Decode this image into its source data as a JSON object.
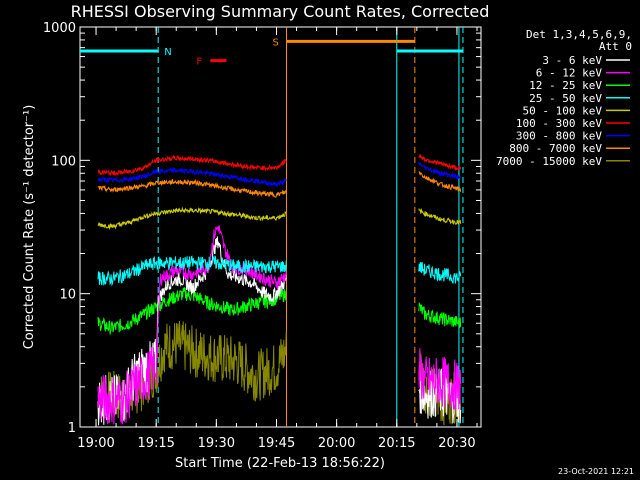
{
  "chart_data": {
    "type": "line",
    "title": "RHESSI Observing Summary Count Rates, Corrected",
    "xlabel": "Start Time (22-Feb-13 18:56:22)",
    "ylabel": "Corrected Count Rate (s⁻¹ detector⁻¹)",
    "yscale": "log",
    "ylim": [
      1,
      1000
    ],
    "x_unit": "minutes of day",
    "xlim": [
      "18:56",
      "20:36"
    ],
    "x_ticks": [
      {
        "label": "19:00",
        "min": 1140
      },
      {
        "label": "19:15",
        "min": 1155
      },
      {
        "label": "19:30",
        "min": 1170
      },
      {
        "label": "19:45",
        "min": 1185
      },
      {
        "label": "20:00",
        "min": 1200
      },
      {
        "label": "20:15",
        "min": 1215
      },
      {
        "label": "20:30",
        "min": 1230
      }
    ],
    "y_ticks": [
      {
        "label": "1",
        "value": 1
      },
      {
        "label": "10",
        "value": 10
      },
      {
        "label": "100",
        "value": 100
      },
      {
        "label": "1000",
        "value": 1000
      }
    ],
    "legend": {
      "placement": "top-right",
      "header": [
        "Det 1,3,4,5,6,9,",
        "Att 0"
      ]
    },
    "series": [
      {
        "name": "3 - 6 keV",
        "color": "#ffffff",
        "segments": [
          [
            [
              1140.5,
              1.6
            ],
            [
              1147,
              1.6
            ],
            [
              1149,
              2.2
            ],
            [
              1151,
              2.6
            ],
            [
              1153,
              2.8
            ],
            [
              1155,
              3
            ],
            [
              1155.5,
              9
            ],
            [
              1158,
              12
            ],
            [
              1161,
              13
            ],
            [
              1164,
              11
            ],
            [
              1166,
              13
            ],
            [
              1168,
              15
            ],
            [
              1169.5,
              22
            ],
            [
              1170.5,
              25
            ],
            [
              1171.5,
              18
            ],
            [
              1173,
              14
            ],
            [
              1176,
              13
            ],
            [
              1179,
              12
            ],
            [
              1182,
              10
            ],
            [
              1184,
              9.5
            ],
            [
              1186,
              11
            ],
            [
              1187.5,
              13
            ]
          ],
          [
            [
              1220.5,
              2
            ],
            [
              1222,
              1.8
            ],
            [
              1226,
              1.8
            ],
            [
              1231,
              1.6
            ]
          ]
        ]
      },
      {
        "name": "6 - 12 keV",
        "color": "#ff00ff",
        "segments": [
          [
            [
              1140.5,
              1.6
            ],
            [
              1147,
              1.6
            ],
            [
              1151,
              2.2
            ],
            [
              1154,
              2.6
            ],
            [
              1155,
              3
            ],
            [
              1156,
              13
            ],
            [
              1160,
              15
            ],
            [
              1164,
              14
            ],
            [
              1166,
              15
            ],
            [
              1168,
              16
            ],
            [
              1169.5,
              28
            ],
            [
              1170.5,
              32
            ],
            [
              1172,
              22
            ],
            [
              1174,
              16
            ],
            [
              1178,
              15
            ],
            [
              1182,
              13
            ],
            [
              1185,
              12
            ],
            [
              1187.5,
              14
            ]
          ],
          [
            [
              1220.5,
              2.6
            ],
            [
              1222,
              2.2
            ],
            [
              1226,
              2.2
            ],
            [
              1231,
              2
            ]
          ]
        ]
      },
      {
        "name": "12 - 25 keV",
        "color": "#00ff00",
        "segments": [
          [
            [
              1140.5,
              6
            ],
            [
              1144,
              5.5
            ],
            [
              1148,
              6
            ],
            [
              1152,
              7
            ],
            [
              1155,
              8
            ],
            [
              1158,
              9
            ],
            [
              1162,
              10
            ],
            [
              1165,
              9.5
            ],
            [
              1168,
              8.5
            ],
            [
              1171,
              8
            ],
            [
              1174,
              7.5
            ],
            [
              1177,
              8
            ],
            [
              1180,
              8.5
            ],
            [
              1184,
              9
            ],
            [
              1187.5,
              10
            ]
          ],
          [
            [
              1220.5,
              8
            ],
            [
              1222,
              7
            ],
            [
              1226,
              6.5
            ],
            [
              1231,
              6
            ]
          ]
        ]
      },
      {
        "name": "25 - 50 keV",
        "color": "#00ffff",
        "segments": [
          [
            [
              1140.5,
              13
            ],
            [
              1144,
              13
            ],
            [
              1148,
              14
            ],
            [
              1152,
              16
            ],
            [
              1155,
              17
            ],
            [
              1160,
              17
            ],
            [
              1165,
              17
            ],
            [
              1170,
              17
            ],
            [
              1175,
              16
            ],
            [
              1180,
              16
            ],
            [
              1185,
              16
            ],
            [
              1187.5,
              16
            ]
          ],
          [
            [
              1220.5,
              16
            ],
            [
              1222,
              15
            ],
            [
              1226,
              14
            ],
            [
              1231,
              13
            ]
          ]
        ]
      },
      {
        "name": "50 - 100 keV",
        "color": "#cccc00",
        "segments": [
          [
            [
              1140.5,
              33
            ],
            [
              1144,
              32
            ],
            [
              1148,
              34
            ],
            [
              1152,
              38
            ],
            [
              1155,
              40
            ],
            [
              1160,
              42
            ],
            [
              1165,
              42
            ],
            [
              1170,
              41
            ],
            [
              1175,
              39
            ],
            [
              1180,
              37
            ],
            [
              1185,
              37
            ],
            [
              1187.5,
              40
            ]
          ],
          [
            [
              1220.5,
              42
            ],
            [
              1222,
              40
            ],
            [
              1226,
              36
            ],
            [
              1231,
              34
            ]
          ]
        ]
      },
      {
        "name": "100 - 300 keV",
        "color": "#ff0000",
        "segments": [
          [
            [
              1140.5,
              82
            ],
            [
              1144,
              80
            ],
            [
              1148,
              82
            ],
            [
              1152,
              88
            ],
            [
              1155,
              100
            ],
            [
              1160,
              104
            ],
            [
              1165,
              102
            ],
            [
              1170,
              98
            ],
            [
              1175,
              92
            ],
            [
              1180,
              88
            ],
            [
              1185,
              88
            ],
            [
              1187.5,
              100
            ]
          ],
          [
            [
              1220.5,
              108
            ],
            [
              1222,
              102
            ],
            [
              1226,
              94
            ],
            [
              1231,
              86
            ]
          ]
        ]
      },
      {
        "name": "300 - 800 keV",
        "color": "#0000ff",
        "segments": [
          [
            [
              1140.5,
              72
            ],
            [
              1144,
              71
            ],
            [
              1148,
              72
            ],
            [
              1152,
              76
            ],
            [
              1155,
              82
            ],
            [
              1160,
              84
            ],
            [
              1165,
              82
            ],
            [
              1170,
              78
            ],
            [
              1175,
              74
            ],
            [
              1180,
              70
            ],
            [
              1185,
              66
            ],
            [
              1187.5,
              70
            ]
          ],
          [
            [
              1220.5,
              95
            ],
            [
              1222,
              88
            ],
            [
              1226,
              80
            ],
            [
              1231,
              74
            ]
          ]
        ]
      },
      {
        "name": "800 - 7000 keV",
        "color": "#ff8800",
        "segments": [
          [
            [
              1140.5,
              62
            ],
            [
              1144,
              60
            ],
            [
              1148,
              62
            ],
            [
              1152,
              64
            ],
            [
              1155,
              68
            ],
            [
              1160,
              69
            ],
            [
              1165,
              68
            ],
            [
              1170,
              64
            ],
            [
              1175,
              60
            ],
            [
              1180,
              57
            ],
            [
              1185,
              55
            ],
            [
              1187.5,
              58
            ]
          ],
          [
            [
              1220.5,
              82
            ],
            [
              1222,
              75
            ],
            [
              1226,
              66
            ],
            [
              1231,
              60
            ]
          ]
        ]
      },
      {
        "name": "7000 - 15000 keV",
        "color": "#888800",
        "segments": [
          [
            [
              1140.5,
              1.7
            ],
            [
              1147,
              1.7
            ],
            [
              1151,
              2
            ],
            [
              1155,
              2.7
            ],
            [
              1157,
              4
            ],
            [
              1160,
              4.2
            ],
            [
              1165,
              3.6
            ],
            [
              1170,
              3.3
            ],
            [
              1175,
              3.1
            ],
            [
              1180,
              2.4
            ],
            [
              1185,
              2.8
            ],
            [
              1187.5,
              3.8
            ]
          ],
          [
            [
              1220.5,
              3.2
            ],
            [
              1222,
              2
            ],
            [
              1226,
              1.6
            ],
            [
              1231,
              1.7
            ]
          ]
        ]
      }
    ],
    "flag_lines": [
      {
        "label": "N",
        "color": "#00ffff",
        "x": [
          1155.5,
          1231.5
        ],
        "level": 660
      },
      {
        "label": "S",
        "color": "#ff8800",
        "x": [
          1187.5,
          1219.5
        ],
        "level": 780
      }
    ],
    "flare_marker": {
      "label": "F",
      "color": "#ff0000",
      "x": [
        1168.5,
        1172.5
      ],
      "level": 560
    },
    "night_intervals": [
      [
        1187.5,
        1215
      ],
      [
        1230.5,
        1236
      ]
    ],
    "saa_intervals": [
      [
        1187.5,
        1219.5
      ]
    ],
    "grid": false
  },
  "footer": {
    "timestamp": "23-Oct-2021 12:21"
  }
}
